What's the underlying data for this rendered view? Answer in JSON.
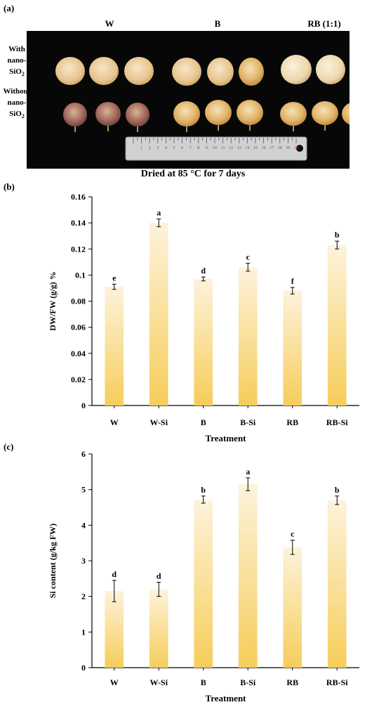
{
  "panels": {
    "a": "(a)",
    "b": "(b)",
    "c": "(c)"
  },
  "photo": {
    "columns": [
      "W",
      "B",
      "RB (1:1)"
    ],
    "rows": [
      {
        "line1": "With",
        "line2": "nano-SiO",
        "sub": "2"
      },
      {
        "line1": "Without",
        "line2": "nano-SiO",
        "sub": "2"
      }
    ],
    "ruler_numbers": [
      "1",
      "2",
      "3",
      "4",
      "5",
      "6",
      "7",
      "8",
      "9",
      "10",
      "11",
      "12",
      "13",
      "14",
      "15",
      "16",
      "17",
      "18",
      "19",
      "20"
    ]
  },
  "photo_title": "Dried at 85 °C for 7 days",
  "chart_data": [
    {
      "type": "bar",
      "categories": [
        "W",
        "W-Si",
        "B",
        "B-Si",
        "RB",
        "RB-Si"
      ],
      "values": [
        0.091,
        0.14,
        0.097,
        0.106,
        0.088,
        0.123
      ],
      "errors": [
        0.002,
        0.003,
        0.0015,
        0.003,
        0.0025,
        0.003
      ],
      "letters": [
        "e",
        "a",
        "d",
        "c",
        "f",
        "b"
      ],
      "xlabel": "Treatment",
      "ylabel": "DW/FW (g/g) %",
      "ylim": [
        0,
        0.16
      ],
      "yticks": [
        0,
        0.02,
        0.04,
        0.06,
        0.08,
        0.1,
        0.12,
        0.14,
        0.16
      ],
      "ytick_labels": [
        "0",
        "0.02",
        "0.04",
        "0.06",
        "0.08",
        "0.1",
        "0.12",
        "0.14",
        "0.16"
      ]
    },
    {
      "type": "bar",
      "categories": [
        "W",
        "W-Si",
        "B",
        "B-Si",
        "RB",
        "RB-Si"
      ],
      "values": [
        2.15,
        2.2,
        4.72,
        5.15,
        3.38,
        4.7
      ],
      "errors": [
        0.3,
        0.2,
        0.1,
        0.18,
        0.2,
        0.12
      ],
      "letters": [
        "d",
        "d",
        "b",
        "a",
        "c",
        "b"
      ],
      "xlabel": "Treatment",
      "ylabel": "Si content (g/kg FW)",
      "ylim": [
        0,
        6
      ],
      "yticks": [
        0,
        1,
        2,
        3,
        4,
        5,
        6
      ],
      "ytick_labels": [
        "0",
        "1",
        "2",
        "3",
        "4",
        "5",
        "6"
      ]
    }
  ],
  "colors": {
    "bar_top": "#fdf3dc",
    "bar_bottom": "#f6cd5a",
    "photo_bg": "#070707",
    "ruler": "#cfd1d3"
  }
}
